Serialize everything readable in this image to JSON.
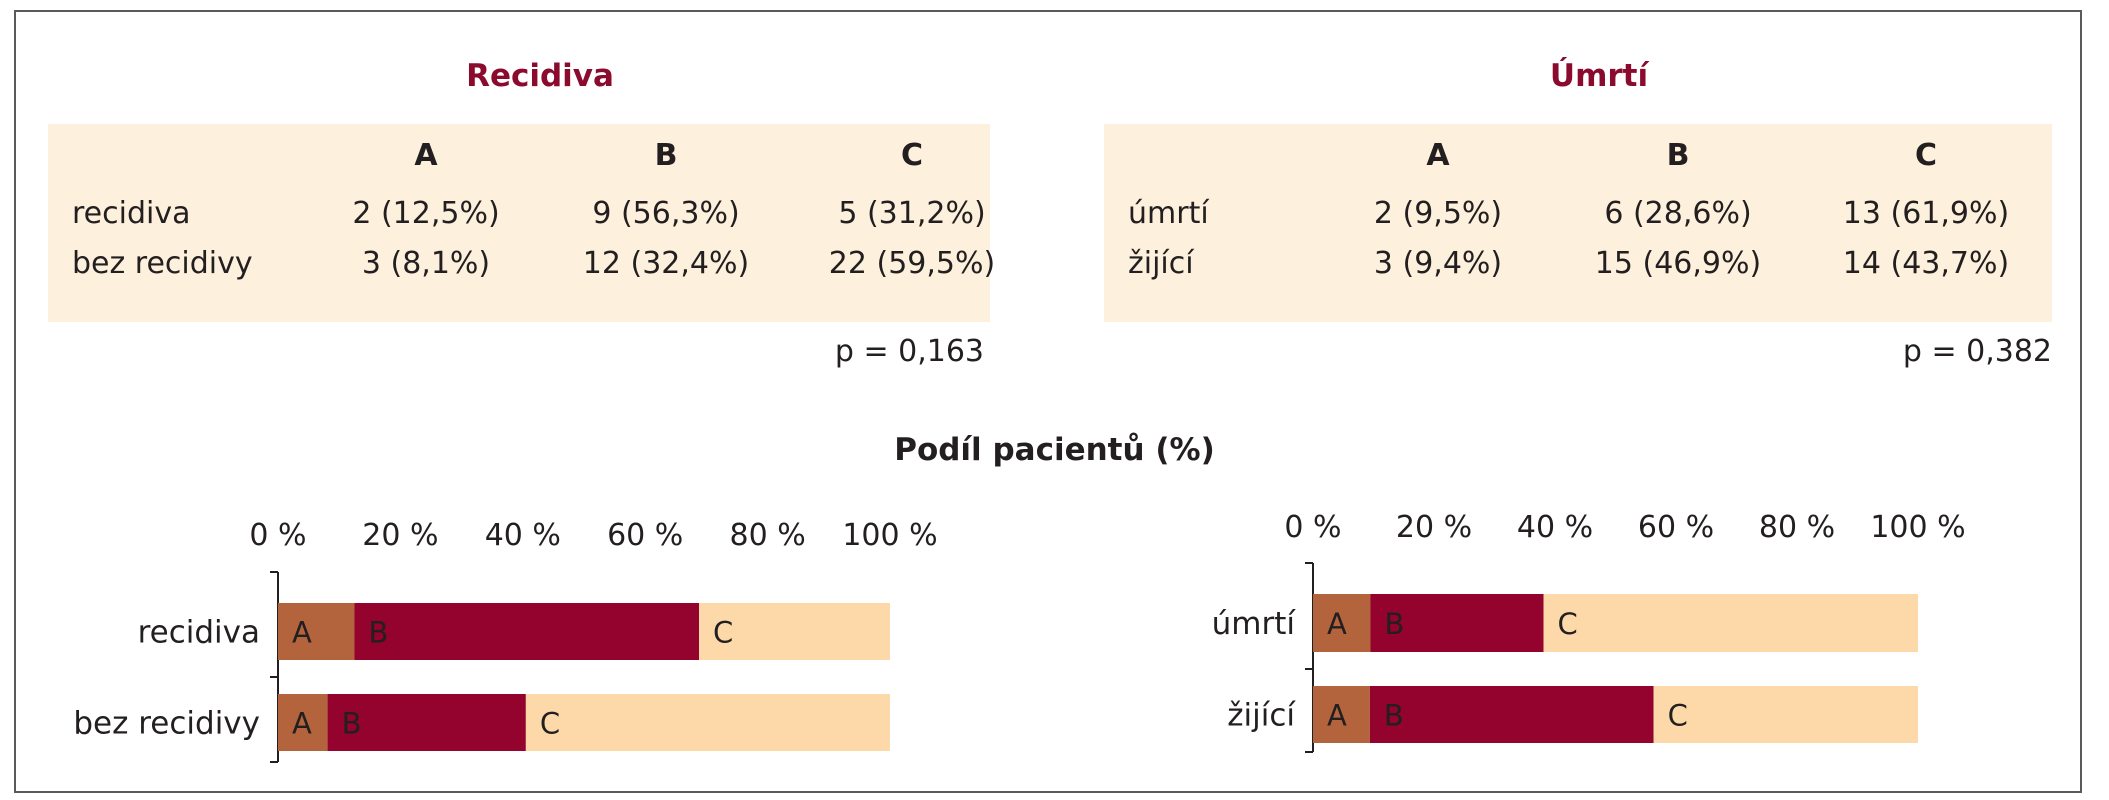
{
  "panels": [
    {
      "title": "Recidiva",
      "columns": [
        "A",
        "B",
        "C"
      ],
      "rows": [
        {
          "label": "recidiva",
          "values": [
            "2 (12,5%)",
            "9 (56,3%)",
            "5 (31,2%)"
          ]
        },
        {
          "label": "bez recidivy",
          "values": [
            "3 (8,1%)",
            "12 (32,4%)",
            "22 (59,5%)"
          ]
        }
      ],
      "p_value": "p = 0,163"
    },
    {
      "title": "Úmrtí",
      "columns": [
        "A",
        "B",
        "C"
      ],
      "rows": [
        {
          "label": "úmrtí",
          "values": [
            "2 (9,5%)",
            "6 (28,6%)",
            "13 (61,9%)"
          ]
        },
        {
          "label": "žijící",
          "values": [
            "3 (9,4%)",
            "15 (46,9%)",
            "14 (43,7%)"
          ]
        }
      ],
      "p_value": "p = 0,382"
    }
  ],
  "chart_title": "Podíl pacientů (%)",
  "colors": {
    "A": "#b4643c",
    "B": "#93032e",
    "C": "#fdd9aa",
    "title": "#8a0b2e",
    "table_bg": "#fdf0dc"
  },
  "chart_data": [
    {
      "type": "bar",
      "stacked": true,
      "orientation": "horizontal",
      "categories": [
        "recidiva",
        "bez recidivy"
      ],
      "series": [
        {
          "name": "A",
          "values": [
            12.5,
            8.1
          ]
        },
        {
          "name": "B",
          "values": [
            56.3,
            32.4
          ]
        },
        {
          "name": "C",
          "values": [
            31.2,
            59.5
          ]
        }
      ],
      "xlim": [
        0,
        100
      ],
      "xticks": [
        "0 %",
        "20 %",
        "40 %",
        "60 %",
        "80 %",
        "100 %"
      ],
      "grid": false,
      "legend": "none"
    },
    {
      "type": "bar",
      "stacked": true,
      "orientation": "horizontal",
      "categories": [
        "úmrtí",
        "žijící"
      ],
      "series": [
        {
          "name": "A",
          "values": [
            9.5,
            9.4
          ]
        },
        {
          "name": "B",
          "values": [
            28.6,
            46.9
          ]
        },
        {
          "name": "C",
          "values": [
            61.9,
            43.7
          ]
        }
      ],
      "xlim": [
        0,
        100
      ],
      "xticks": [
        "0 %",
        "20 %",
        "40 %",
        "60 %",
        "80 %",
        "100 %"
      ],
      "grid": false,
      "legend": "none"
    }
  ]
}
